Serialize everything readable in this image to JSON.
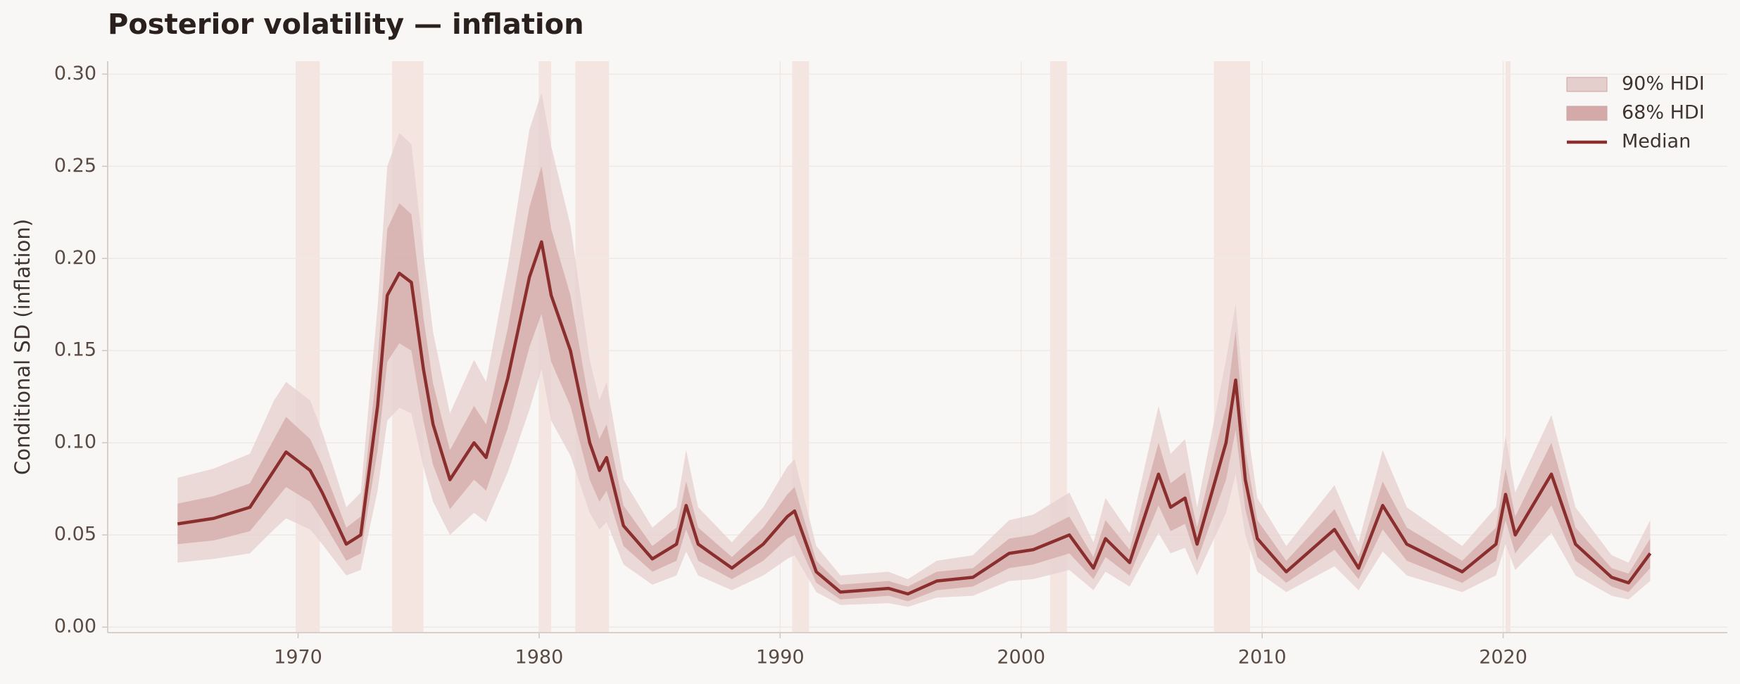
{
  "chart_data": {
    "type": "line",
    "title": "Posterior volatility — inflation",
    "y_label": "Conditional SD (inflation)",
    "xlim": [
      1962.1,
      2029.3
    ],
    "ylim": [
      -0.003,
      0.307
    ],
    "xticks": [
      1970,
      1980,
      1990,
      2000,
      2010,
      2020
    ],
    "yticks": [
      {
        "value": 0,
        "label": "0.00"
      },
      {
        "value": 0.05,
        "label": "0.05"
      },
      {
        "value": 0.1,
        "label": "0.10"
      },
      {
        "value": 0.15,
        "label": "0.15"
      },
      {
        "value": 0.2,
        "label": "0.20"
      },
      {
        "value": 0.25,
        "label": "0.25"
      },
      {
        "value": 0.3,
        "label": "0.30"
      }
    ],
    "grid": true,
    "legend": "upper right",
    "shaded_regions": [
      [
        1969.9,
        1970.9
      ],
      [
        1973.9,
        1975.2
      ],
      [
        1980.0,
        1980.5
      ],
      [
        1981.5,
        1982.9
      ],
      [
        1990.5,
        1991.2
      ],
      [
        2001.2,
        2001.9
      ],
      [
        2008.0,
        2009.5
      ],
      [
        2020.1,
        2020.3
      ]
    ],
    "shade_color": "#f3e0dc",
    "x": [
      1965,
      1966.5,
      1968,
      1969,
      1969.5,
      1970.5,
      1971,
      1972,
      1972.6,
      1973.3,
      1973.7,
      1974.2,
      1974.7,
      1975.2,
      1975.6,
      1976.3,
      1977.3,
      1977.8,
      1978.7,
      1979.6,
      1980.1,
      1980.5,
      1981.3,
      1982.1,
      1982.5,
      1982.8,
      1983.5,
      1984.7,
      1985.7,
      1986.1,
      1986.6,
      1988,
      1989.3,
      1990.3,
      1990.6,
      1991.5,
      1992.5,
      1994.5,
      1995.3,
      1996.5,
      1998,
      1999.5,
      2000.5,
      2002,
      2003,
      2003.5,
      2004.5,
      2005.7,
      2006.2,
      2006.8,
      2007.3,
      2008.5,
      2008.9,
      2009.3,
      2009.8,
      2011,
      2013,
      2014,
      2015,
      2016,
      2018.3,
      2019.7,
      2020.1,
      2020.5,
      2022,
      2023,
      2024.5,
      2025.2,
      2026.1
    ],
    "series": [
      {
        "name": "90% HDI",
        "color": "#e5cfcd",
        "lower": [
          0.035,
          0.037,
          0.04,
          0.053,
          0.059,
          0.053,
          0.045,
          0.028,
          0.031,
          0.074,
          0.112,
          0.119,
          0.116,
          0.087,
          0.068,
          0.05,
          0.062,
          0.057,
          0.084,
          0.118,
          0.14,
          0.112,
          0.093,
          0.062,
          0.053,
          0.057,
          0.034,
          0.023,
          0.028,
          0.041,
          0.028,
          0.02,
          0.028,
          0.037,
          0.039,
          0.019,
          0.012,
          0.013,
          0.011,
          0.016,
          0.017,
          0.025,
          0.026,
          0.031,
          0.02,
          0.03,
          0.022,
          0.051,
          0.04,
          0.043,
          0.028,
          0.062,
          0.083,
          0.05,
          0.03,
          0.019,
          0.033,
          0.02,
          0.041,
          0.028,
          0.019,
          0.028,
          0.045,
          0.031,
          0.051,
          0.028,
          0.017,
          0.015,
          0.025
        ],
        "upper": [
          0.081,
          0.086,
          0.094,
          0.123,
          0.133,
          0.123,
          0.106,
          0.065,
          0.073,
          0.174,
          0.25,
          0.268,
          0.262,
          0.203,
          0.16,
          0.116,
          0.145,
          0.133,
          0.196,
          0.27,
          0.29,
          0.261,
          0.218,
          0.145,
          0.123,
          0.133,
          0.08,
          0.054,
          0.065,
          0.096,
          0.065,
          0.046,
          0.065,
          0.087,
          0.091,
          0.044,
          0.028,
          0.03,
          0.026,
          0.036,
          0.039,
          0.058,
          0.061,
          0.073,
          0.046,
          0.07,
          0.051,
          0.12,
          0.094,
          0.102,
          0.065,
          0.145,
          0.175,
          0.116,
          0.07,
          0.044,
          0.077,
          0.046,
          0.096,
          0.065,
          0.044,
          0.065,
          0.104,
          0.073,
          0.115,
          0.065,
          0.039,
          0.035,
          0.058
        ]
      },
      {
        "name": "68% HDI",
        "color": "#d3aaa8",
        "lower": [
          0.045,
          0.047,
          0.052,
          0.068,
          0.076,
          0.068,
          0.058,
          0.036,
          0.04,
          0.096,
          0.144,
          0.154,
          0.15,
          0.112,
          0.088,
          0.064,
          0.08,
          0.074,
          0.108,
          0.152,
          0.17,
          0.144,
          0.12,
          0.08,
          0.068,
          0.074,
          0.044,
          0.03,
          0.036,
          0.053,
          0.036,
          0.026,
          0.036,
          0.048,
          0.05,
          0.024,
          0.015,
          0.017,
          0.014,
          0.02,
          0.022,
          0.032,
          0.034,
          0.04,
          0.026,
          0.038,
          0.028,
          0.066,
          0.052,
          0.056,
          0.036,
          0.08,
          0.107,
          0.064,
          0.038,
          0.024,
          0.042,
          0.026,
          0.053,
          0.036,
          0.024,
          0.036,
          0.058,
          0.04,
          0.066,
          0.036,
          0.022,
          0.019,
          0.032
        ],
        "upper": [
          0.067,
          0.071,
          0.078,
          0.102,
          0.114,
          0.102,
          0.088,
          0.054,
          0.06,
          0.144,
          0.216,
          0.23,
          0.224,
          0.168,
          0.132,
          0.096,
          0.12,
          0.11,
          0.162,
          0.228,
          0.25,
          0.216,
          0.18,
          0.12,
          0.102,
          0.11,
          0.066,
          0.044,
          0.054,
          0.079,
          0.054,
          0.038,
          0.054,
          0.072,
          0.076,
          0.036,
          0.023,
          0.025,
          0.022,
          0.03,
          0.032,
          0.048,
          0.05,
          0.06,
          0.038,
          0.058,
          0.042,
          0.1,
          0.078,
          0.084,
          0.054,
          0.12,
          0.161,
          0.096,
          0.058,
          0.036,
          0.064,
          0.038,
          0.079,
          0.054,
          0.036,
          0.054,
          0.086,
          0.06,
          0.1,
          0.054,
          0.032,
          0.029,
          0.048
        ]
      },
      {
        "name": "Median",
        "color": "#8b2e2e",
        "values": [
          0.056,
          0.059,
          0.065,
          0.085,
          0.095,
          0.085,
          0.073,
          0.045,
          0.05,
          0.12,
          0.18,
          0.192,
          0.187,
          0.14,
          0.11,
          0.08,
          0.1,
          0.092,
          0.135,
          0.19,
          0.209,
          0.18,
          0.15,
          0.1,
          0.085,
          0.092,
          0.055,
          0.037,
          0.045,
          0.066,
          0.045,
          0.032,
          0.045,
          0.06,
          0.063,
          0.03,
          0.019,
          0.021,
          0.018,
          0.025,
          0.027,
          0.04,
          0.042,
          0.05,
          0.032,
          0.048,
          0.035,
          0.083,
          0.065,
          0.07,
          0.045,
          0.1,
          0.134,
          0.08,
          0.048,
          0.03,
          0.053,
          0.032,
          0.066,
          0.045,
          0.03,
          0.045,
          0.072,
          0.05,
          0.083,
          0.045,
          0.027,
          0.024,
          0.04
        ]
      }
    ]
  }
}
